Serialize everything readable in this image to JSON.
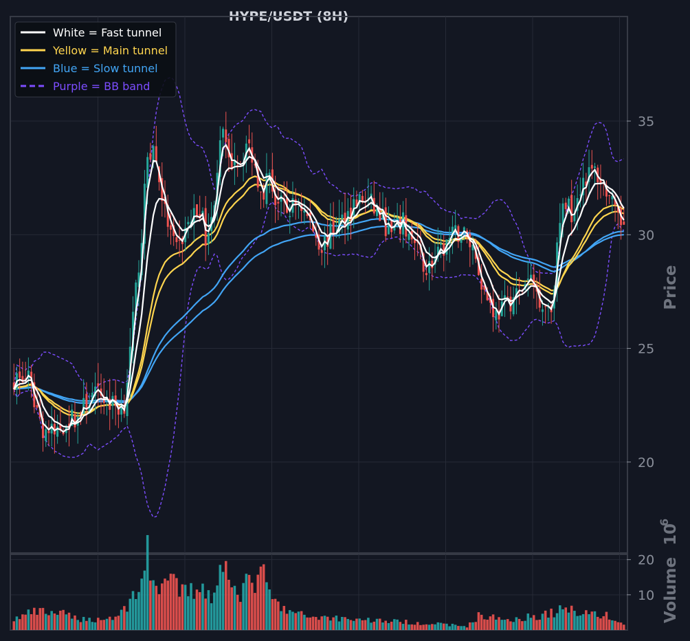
{
  "chart_data": {
    "type": "candlestick",
    "title": "HYPE/USDT (8H)",
    "price_axis": {
      "label": "Price",
      "ticks": [
        20,
        25,
        30,
        35
      ],
      "range": [
        16.0,
        39.6
      ]
    },
    "volume_axis": {
      "label": "Volume",
      "exponent": "6",
      "ticks": [
        10,
        20
      ],
      "range": [
        0,
        21.5
      ]
    },
    "grid": true,
    "legend": {
      "placement": "top-left",
      "entries": [
        {
          "label": "White = Fast tunnel",
          "color": "#ffffff",
          "dash": false
        },
        {
          "label": "Yellow = Main tunnel",
          "color": "#ffd54f",
          "dash": false
        },
        {
          "label": "Blue = Slow tunnel",
          "color": "#42a5f5",
          "dash": false
        },
        {
          "label": "Purple = BB band",
          "color": "#7c4dff",
          "dash": true
        }
      ]
    },
    "colors": {
      "up": "#26a69a",
      "down": "#ef5350",
      "background": "#131722",
      "grid": "#262a36",
      "text": "#8a8f9a"
    },
    "candle_count": 211,
    "close_anchors": [
      [
        0,
        23.7
      ],
      [
        5,
        23.6
      ],
      [
        10,
        21.5
      ],
      [
        14,
        21.2
      ],
      [
        18,
        21.8
      ],
      [
        22,
        22.0
      ],
      [
        26,
        22.8
      ],
      [
        30,
        23.0
      ],
      [
        33,
        22.6
      ],
      [
        36,
        22.4
      ],
      [
        38,
        22.6
      ],
      [
        40,
        24.8
      ],
      [
        42,
        27.5
      ],
      [
        44,
        30.0
      ],
      [
        46,
        33.5
      ],
      [
        48,
        33.8
      ],
      [
        50,
        32.5
      ],
      [
        52,
        31.0
      ],
      [
        54,
        30.0
      ],
      [
        56,
        29.2
      ],
      [
        60,
        30.5
      ],
      [
        64,
        31.2
      ],
      [
        66,
        30.0
      ],
      [
        68,
        30.5
      ],
      [
        70,
        33.0
      ],
      [
        72,
        34.5
      ],
      [
        74,
        33.0
      ],
      [
        76,
        33.5
      ],
      [
        78,
        33.2
      ],
      [
        80,
        34.0
      ],
      [
        82,
        33.5
      ],
      [
        84,
        32.5
      ],
      [
        86,
        32.0
      ],
      [
        88,
        32.8
      ],
      [
        90,
        31.5
      ],
      [
        94,
        31.0
      ],
      [
        98,
        31.5
      ],
      [
        102,
        30.5
      ],
      [
        106,
        29.5
      ],
      [
        110,
        30.2
      ],
      [
        114,
        30.8
      ],
      [
        118,
        31.5
      ],
      [
        122,
        31.5
      ],
      [
        126,
        30.8
      ],
      [
        130,
        30.0
      ],
      [
        134,
        30.5
      ],
      [
        138,
        29.5
      ],
      [
        142,
        28.5
      ],
      [
        146,
        29.0
      ],
      [
        150,
        29.8
      ],
      [
        154,
        30.2
      ],
      [
        158,
        29.5
      ],
      [
        162,
        27.5
      ],
      [
        166,
        26.5
      ],
      [
        170,
        27.0
      ],
      [
        174,
        27.5
      ],
      [
        178,
        28.0
      ],
      [
        182,
        27.0
      ],
      [
        185,
        26.8
      ],
      [
        188,
        30.5
      ],
      [
        190,
        31.5
      ],
      [
        192,
        31.0
      ],
      [
        196,
        32.5
      ],
      [
        200,
        32.8
      ],
      [
        204,
        32.0
      ],
      [
        208,
        30.5
      ],
      [
        210,
        30.6
      ]
    ],
    "volume_anchors": [
      [
        0,
        3
      ],
      [
        6,
        5
      ],
      [
        14,
        5
      ],
      [
        24,
        3
      ],
      [
        30,
        3
      ],
      [
        36,
        4
      ],
      [
        40,
        8
      ],
      [
        44,
        15
      ],
      [
        46,
        21
      ],
      [
        48,
        13
      ],
      [
        52,
        14
      ],
      [
        56,
        12
      ],
      [
        60,
        10
      ],
      [
        64,
        13
      ],
      [
        68,
        10
      ],
      [
        70,
        15
      ],
      [
        74,
        18
      ],
      [
        78,
        11
      ],
      [
        82,
        14
      ],
      [
        86,
        15
      ],
      [
        88,
        10
      ],
      [
        92,
        6
      ],
      [
        100,
        4
      ],
      [
        120,
        3
      ],
      [
        140,
        2
      ],
      [
        150,
        1.5
      ],
      [
        156,
        1
      ],
      [
        160,
        4
      ],
      [
        170,
        3
      ],
      [
        180,
        4
      ],
      [
        186,
        5
      ],
      [
        190,
        6
      ],
      [
        198,
        5
      ],
      [
        204,
        4
      ],
      [
        210,
        1.5
      ]
    ],
    "ema_fast": [
      3,
      8
    ],
    "ema_main": [
      21,
      26
    ],
    "ema_slow": [
      60,
      75
    ],
    "bollinger": {
      "period": 20,
      "std": 2
    }
  }
}
